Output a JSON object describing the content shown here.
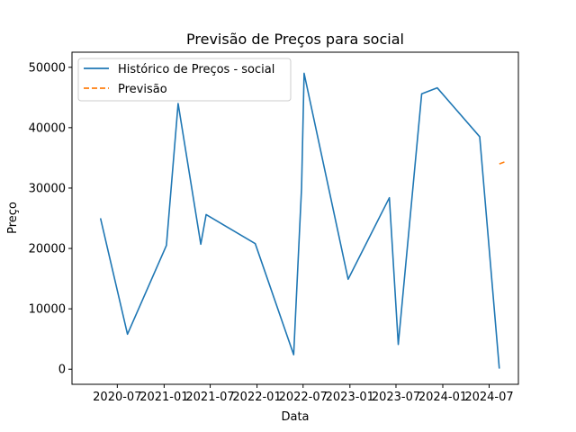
{
  "chart_data": {
    "type": "line",
    "title": "Previsão de Preços para social",
    "xlabel": "Data",
    "ylabel": "Preço",
    "x_axis_type": "date",
    "xlim": [
      "2020-01-05",
      "2024-10-24"
    ],
    "ylim": [
      -2500,
      52500
    ],
    "xticks": [
      {
        "date": "2020-07-01",
        "label": "2020-07"
      },
      {
        "date": "2021-01-01",
        "label": "2021-01"
      },
      {
        "date": "2021-07-01",
        "label": "2021-07"
      },
      {
        "date": "2022-01-01",
        "label": "2022-01"
      },
      {
        "date": "2022-07-01",
        "label": "2022-07"
      },
      {
        "date": "2023-01-01",
        "label": "2023-01"
      },
      {
        "date": "2023-07-01",
        "label": "2023-07"
      },
      {
        "date": "2024-01-01",
        "label": "2024-01"
      },
      {
        "date": "2024-07-01",
        "label": "2024-07"
      }
    ],
    "yticks": [
      0,
      10000,
      20000,
      30000,
      40000,
      50000
    ],
    "ytick_labels": [
      "0",
      "10000",
      "20000",
      "30000",
      "40000",
      "50000"
    ],
    "grid": false,
    "legend_position": "top-left",
    "series": [
      {
        "name": "Histórico de Preços - social",
        "color": "#1f77b4",
        "line_style": "solid",
        "points": [
          {
            "x": "2020-04-26",
            "y": 25000
          },
          {
            "x": "2020-08-10",
            "y": 5800
          },
          {
            "x": "2021-01-10",
            "y": 20500
          },
          {
            "x": "2021-02-25",
            "y": 44000
          },
          {
            "x": "2021-05-25",
            "y": 20700
          },
          {
            "x": "2021-06-15",
            "y": 25600
          },
          {
            "x": "2021-12-25",
            "y": 20800
          },
          {
            "x": "2022-05-25",
            "y": 2400
          },
          {
            "x": "2022-06-25",
            "y": 30000
          },
          {
            "x": "2022-07-05",
            "y": 49000
          },
          {
            "x": "2022-12-25",
            "y": 14900
          },
          {
            "x": "2023-06-05",
            "y": 28400
          },
          {
            "x": "2023-07-10",
            "y": 4100
          },
          {
            "x": "2023-10-10",
            "y": 45600
          },
          {
            "x": "2023-12-10",
            "y": 46600
          },
          {
            "x": "2024-05-25",
            "y": 38500
          },
          {
            "x": "2024-08-10",
            "y": 100
          }
        ]
      },
      {
        "name": "Previsão",
        "color": "#ff7f0e",
        "line_style": "dashed",
        "points": [
          {
            "x": "2024-08-10",
            "y": 34000
          },
          {
            "x": "2024-09-05",
            "y": 34400
          }
        ]
      }
    ]
  }
}
